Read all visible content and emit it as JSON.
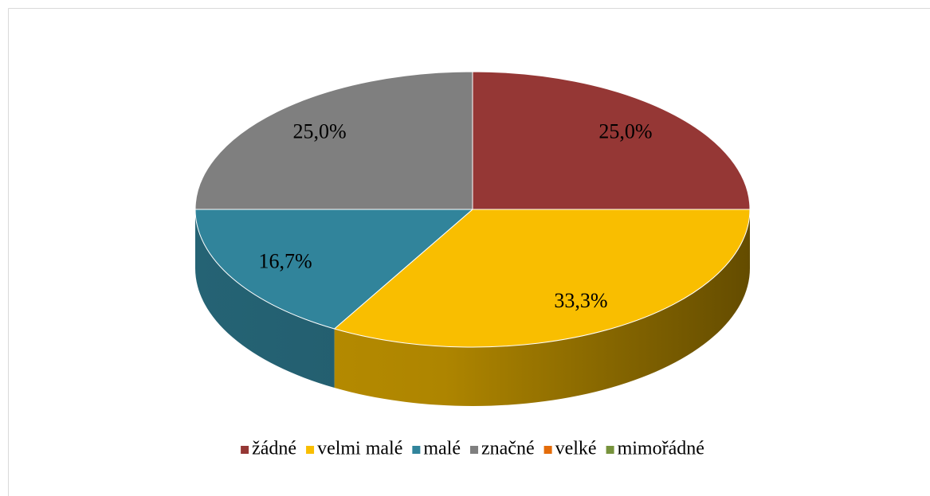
{
  "chart_data": {
    "type": "pie",
    "categories": [
      "žádné",
      "velmi malé",
      "malé",
      "značné",
      "velké",
      "mimořádné"
    ],
    "values": [
      25.0,
      33.3,
      16.7,
      25.0,
      0,
      0
    ],
    "value_labels": [
      "25,0%",
      "33,3%",
      "16,7%",
      "25,0%",
      null,
      null
    ],
    "colors": [
      "#953735",
      "#f9be00",
      "#31849b",
      "#7f7f7f",
      "#e46c0a",
      "#77933c"
    ],
    "legend": "bottom",
    "style_3d": true
  }
}
